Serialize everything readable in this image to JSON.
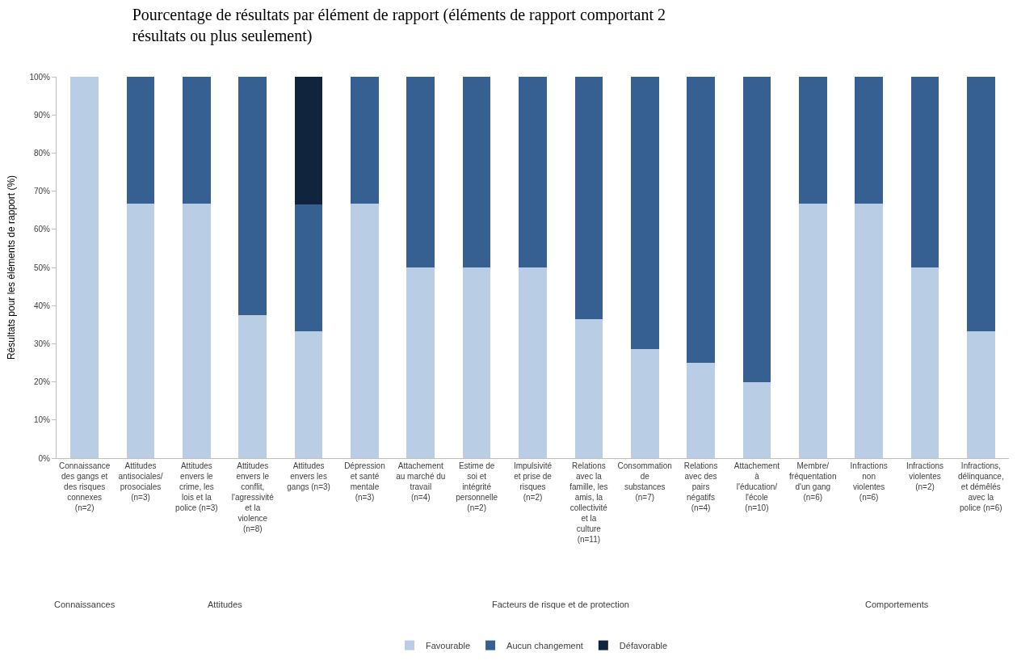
{
  "chart_data": {
    "type": "bar",
    "stacked": true,
    "title": "Pourcentage de résultats par élément de rapport (éléments de rapport comportant 2 résultats ou plus seulement)",
    "ylabel": "Résultats pour les éléments de rapport (%)",
    "categories": [
      "Connaissance des gangs et des risques connexes (n=2)",
      "Attitudes antisociales/ prosociales (n=3)",
      "Attitudes envers le crime, les lois et la police (n=3)",
      "Attitudes envers le conflit, l'agressivité et la violence (n=8)",
      "Attitudes envers les gangs (n=3)",
      "Dépression et santé mentale (n=3)",
      "Attachement au marché du travail (n=4)",
      "Estime de soi et intégrité personnelle (n=2)",
      "Impulsivité et prise de risques (n=2)",
      "Relations avec la famille, les amis, la collectivité et la culture (n=11)",
      "Consommation de substances (n=7)",
      "Relations avec des pairs négatifs (n=4)",
      "Attachement à l'éducation/ l'école (n=10)",
      "Membre/ fréquentation d'un gang (n=6)",
      "Infractions non violentes (n=6)",
      "Infractions violentes (n=2)",
      "Infractions, délinquance, et démêlés avec la police (n=6)"
    ],
    "series": [
      {
        "name": "Favourable",
        "color": "#b9cde5",
        "values": [
          100,
          66.7,
          66.7,
          37.5,
          33.3,
          66.7,
          50,
          50,
          50,
          36.4,
          28.6,
          25,
          20,
          66.7,
          66.7,
          50,
          33.3
        ]
      },
      {
        "name": "Aucun changement",
        "color": "#376092",
        "values": [
          0,
          33.3,
          33.3,
          62.5,
          33.3,
          33.3,
          50,
          50,
          50,
          63.6,
          71.4,
          75,
          80,
          33.3,
          33.3,
          50,
          66.7
        ]
      },
      {
        "name": "Défavorable",
        "color": "#10243e",
        "values": [
          0,
          0,
          0,
          0,
          33.4,
          0,
          0,
          0,
          0,
          0,
          0,
          0,
          0,
          0,
          0,
          0,
          0
        ]
      }
    ],
    "annotations": [
      "Connaissances",
      "Attitudes",
      "Facteurs de risque et de protection",
      "Comportements"
    ],
    "ylim": [
      0,
      100
    ],
    "yticks": [
      {
        "value": 0,
        "label": "0%"
      },
      {
        "value": 10,
        "label": "10%"
      },
      {
        "value": 20,
        "label": "20%"
      },
      {
        "value": 30,
        "label": "30%"
      },
      {
        "value": 40,
        "label": "40%"
      },
      {
        "value": 50,
        "label": "50%"
      },
      {
        "value": 60,
        "label": "60%"
      },
      {
        "value": 70,
        "label": "70%"
      },
      {
        "value": 80,
        "label": "80%"
      },
      {
        "value": 90,
        "label": "90%"
      },
      {
        "value": 100,
        "label": "100%"
      }
    ],
    "grid": false,
    "legend": "bottom"
  }
}
